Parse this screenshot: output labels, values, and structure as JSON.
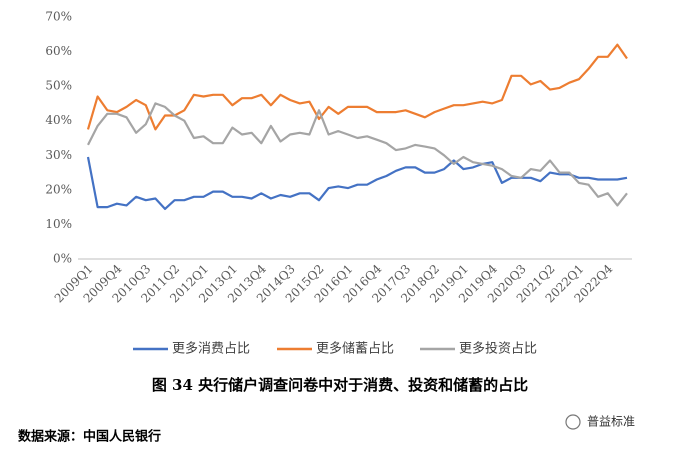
{
  "chart_data": {
    "type": "line",
    "caption": "图 34   央行储户调查问卷中对于消费、投资和储蓄的占比",
    "source": "数据来源：中国人民银行",
    "watermark": "普益标准",
    "categories": [
      "2009Q1",
      null,
      null,
      "2009Q4",
      null,
      null,
      "2010Q3",
      null,
      null,
      "2011Q2",
      null,
      null,
      "2012Q1",
      null,
      null,
      "2013Q1",
      null,
      null,
      "2013Q4",
      null,
      null,
      "2014Q3",
      null,
      null,
      "2015Q2",
      null,
      null,
      "2016Q1",
      null,
      null,
      "2016Q4",
      null,
      null,
      "2017Q3",
      null,
      null,
      "2018Q2",
      null,
      null,
      "2019Q1",
      null,
      null,
      "2019Q4",
      null,
      null,
      "2020Q3",
      null,
      null,
      "2021Q2",
      null,
      null,
      "2022Q1",
      null,
      null,
      "2022Q4",
      null,
      null
    ],
    "series": [
      {
        "name": "更多消费占比",
        "color": "#4472c4",
        "values": [
          29.5,
          15,
          15,
          16,
          15.5,
          18,
          17,
          17.5,
          14.5,
          17,
          17,
          18,
          18,
          19.5,
          19.5,
          18,
          18,
          17.5,
          19,
          17.5,
          18.5,
          18,
          19,
          19,
          17,
          20.5,
          21,
          20.5,
          21.5,
          21.5,
          23,
          24,
          25.5,
          26.5,
          26.5,
          25,
          25,
          26,
          28.5,
          26,
          26.5,
          27.5,
          28,
          22,
          23.5,
          23.5,
          23.5,
          22.5,
          25,
          24.5,
          24.5,
          23.5,
          23.5,
          23,
          23,
          23,
          23.5
        ]
      },
      {
        "name": "更多储蓄占比",
        "color": "#ed7d31",
        "values": [
          37.5,
          47,
          43,
          42.5,
          44,
          46,
          44.5,
          37.5,
          41.5,
          41.5,
          43,
          47.5,
          47,
          47.5,
          47.5,
          44.5,
          46.5,
          46.5,
          47.5,
          44.5,
          47.5,
          46,
          45,
          45.5,
          40.5,
          44,
          42,
          44,
          44,
          44,
          42.5,
          42.5,
          42.5,
          43,
          42,
          41,
          42.5,
          43.5,
          44.5,
          44.5,
          45,
          45.5,
          45,
          46,
          53,
          53,
          50.5,
          51.5,
          49,
          49.5,
          51,
          52,
          55,
          58.5,
          58.5,
          62,
          58
        ]
      },
      {
        "name": "更多投资占比",
        "color": "#a5a5a5",
        "values": [
          33,
          38.5,
          42,
          42,
          41,
          36.5,
          39,
          45,
          44,
          41.5,
          40,
          35,
          35.5,
          33.5,
          33.5,
          38,
          36,
          36.5,
          33.5,
          38.5,
          34,
          36,
          36.5,
          36,
          43,
          36,
          37,
          36,
          35,
          35.5,
          34.5,
          33.5,
          31.5,
          32,
          33,
          32.5,
          32,
          30,
          27.5,
          29.5,
          28,
          27.5,
          27,
          26,
          24,
          23.5,
          26,
          25.5,
          28.5,
          25,
          25,
          22,
          21.5,
          18,
          19,
          15.5,
          19
        ]
      }
    ],
    "ylim": [
      0,
      70
    ],
    "yticks": [
      {
        "value": 0,
        "label": "0%"
      },
      {
        "value": 10,
        "label": "10%"
      },
      {
        "value": 20,
        "label": "20%"
      },
      {
        "value": 30,
        "label": "30%"
      },
      {
        "value": 40,
        "label": "40%"
      },
      {
        "value": 50,
        "label": "50%"
      },
      {
        "value": 60,
        "label": "60%"
      },
      {
        "value": 70,
        "label": "70%"
      }
    ],
    "grid": false,
    "legend": "bottom"
  }
}
